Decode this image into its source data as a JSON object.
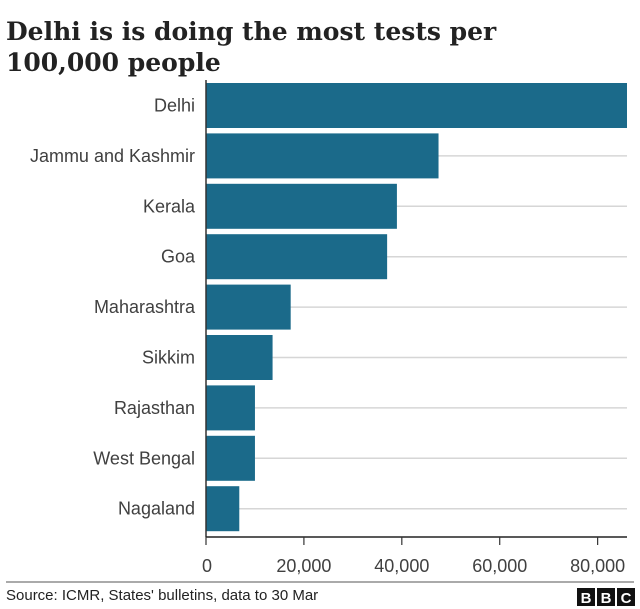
{
  "chart_data": {
    "type": "bar",
    "orientation": "horizontal",
    "title": "Delhi is is doing the most tests per 100,000 people",
    "title_lines": [
      "Delhi is is doing the most tests per",
      "100,000 people"
    ],
    "categories": [
      "Delhi",
      "Jammu and Kashmir",
      "Kerala",
      "Goa",
      "Maharashtra",
      "Sikkim",
      "Rajasthan",
      "West Bengal",
      "Nagaland"
    ],
    "values": [
      86000,
      47500,
      39000,
      37000,
      17300,
      13600,
      10000,
      10000,
      6800
    ],
    "xlim": [
      0,
      86000
    ],
    "xticks": [
      0,
      20000,
      40000,
      60000,
      80000
    ],
    "xtick_labels": [
      "0",
      "20,000",
      "40,000",
      "60,000",
      "80,000"
    ],
    "xlabel": "",
    "ylabel": "",
    "grid": true,
    "bar_color": "#1b6a8a"
  },
  "footer": {
    "source": "Source: ICMR, States' bulletins, data to 30 Mar",
    "logo": "BBC"
  }
}
